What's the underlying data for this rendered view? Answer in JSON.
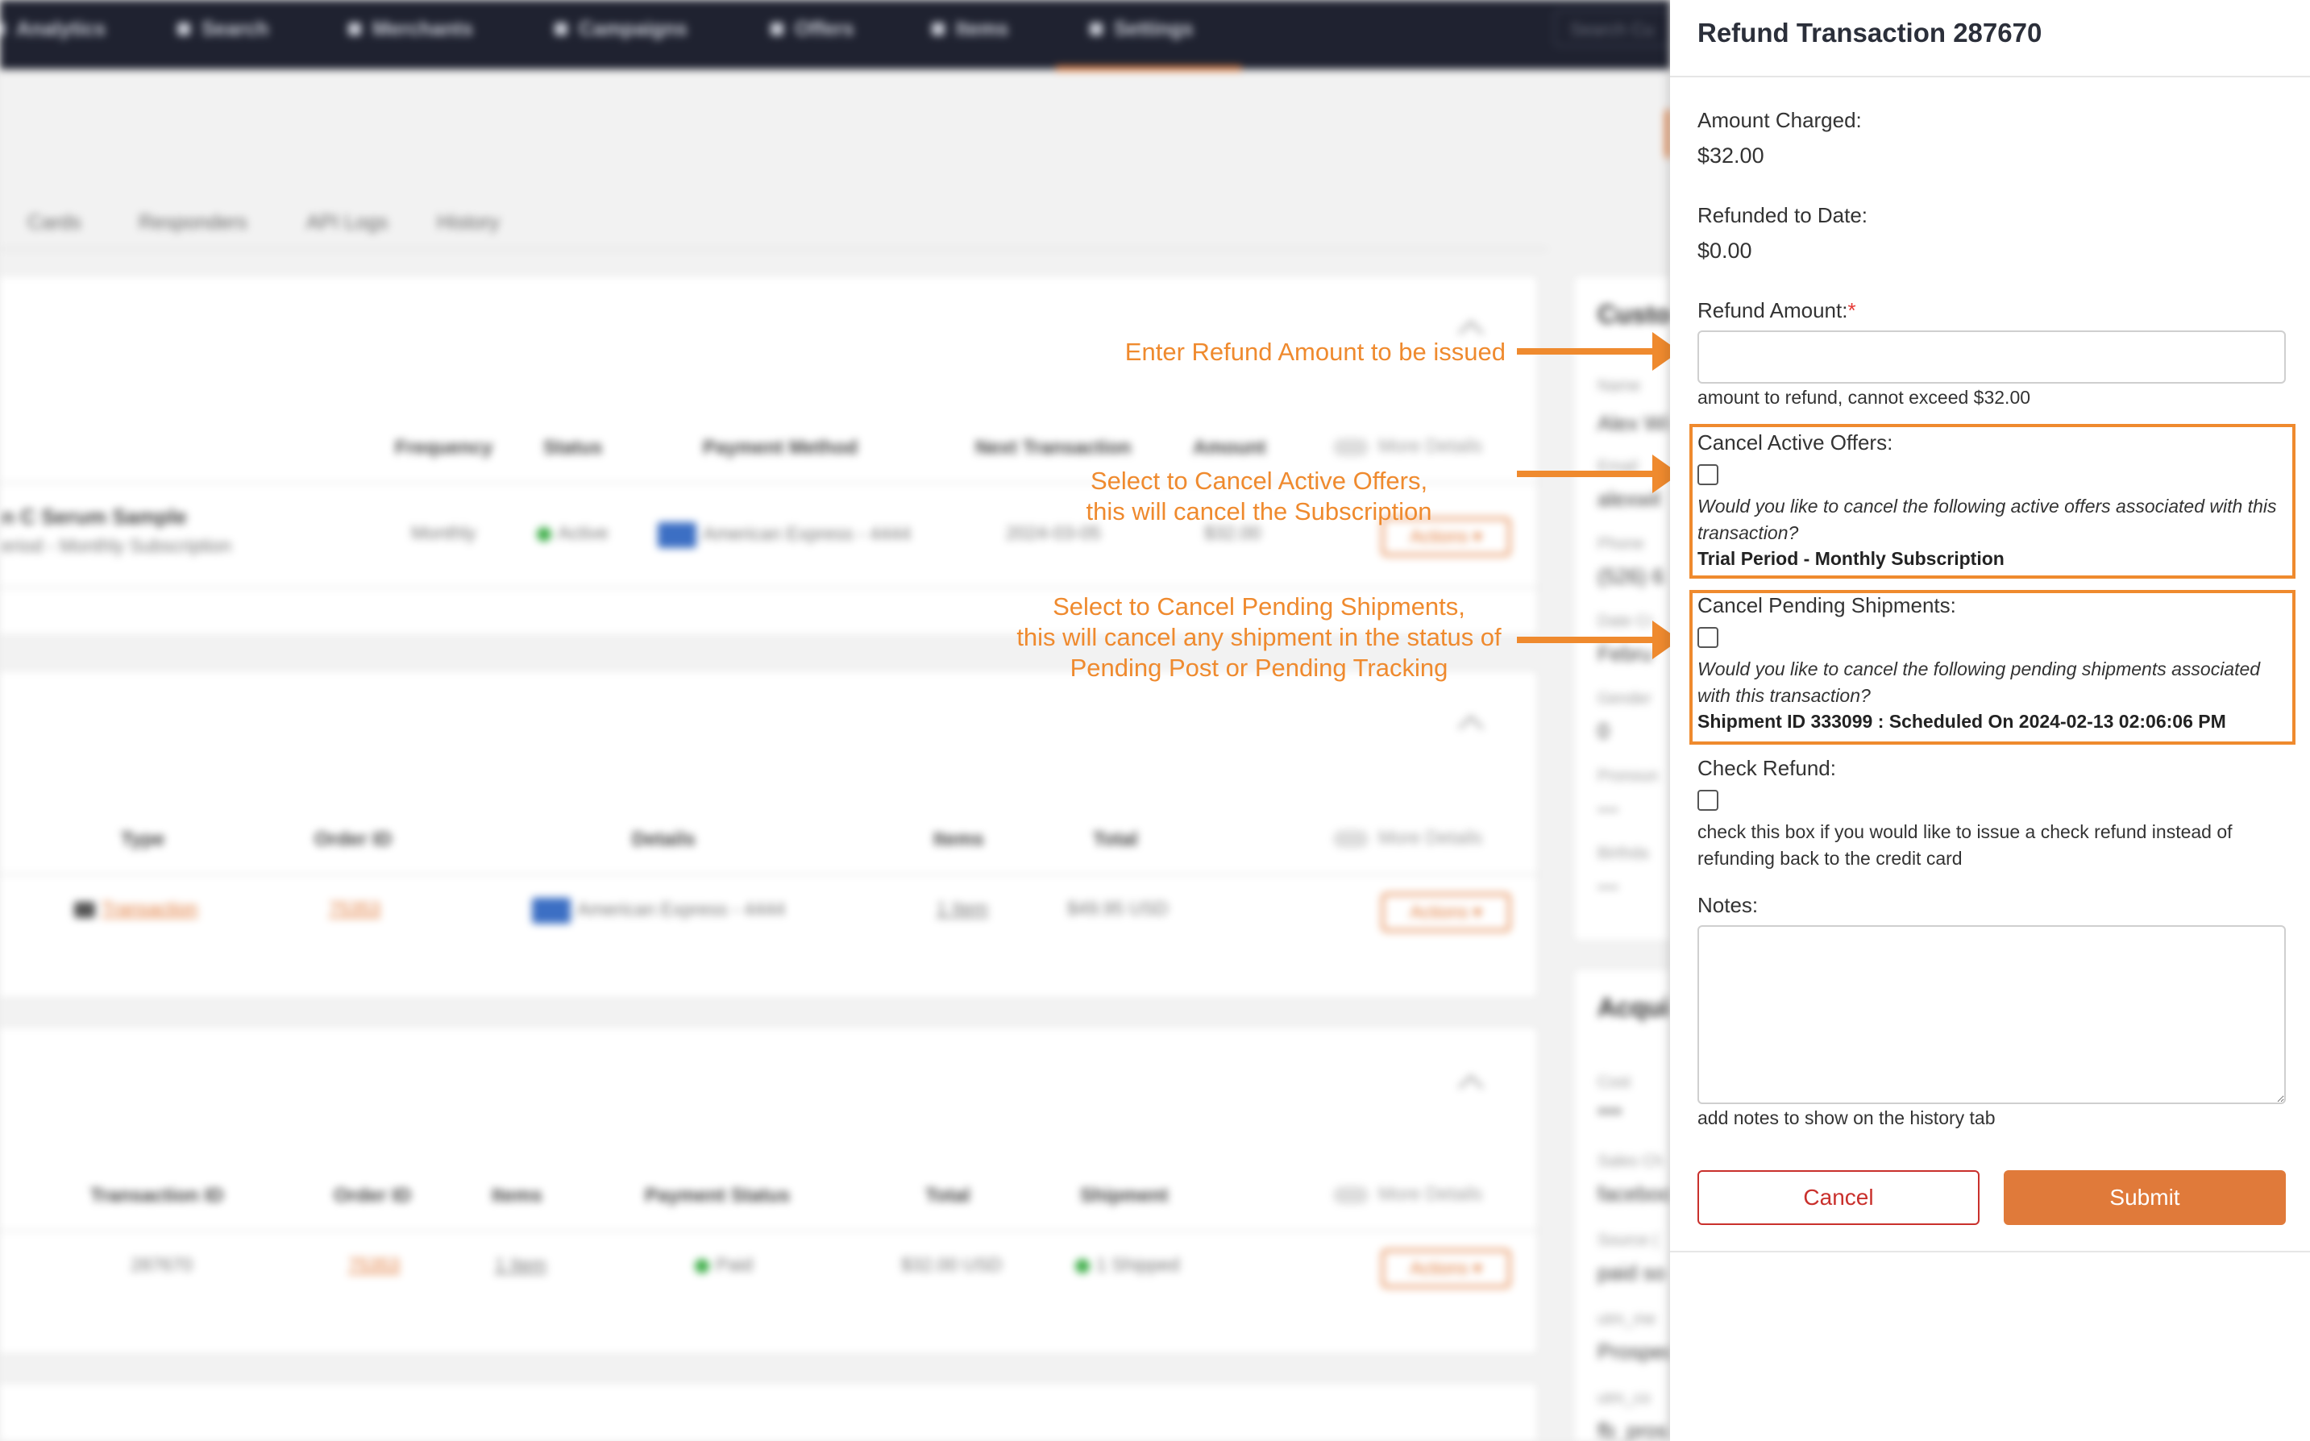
{
  "nav": {
    "items": [
      "Analytics",
      "Search",
      "Merchants",
      "Campaigns",
      "Offers",
      "Items",
      "Settings"
    ],
    "search_placeholder": "Search Cu"
  },
  "subtabs": [
    "Cards",
    "Responders",
    "API Logs",
    "History"
  ],
  "offers_table": {
    "headers": [
      "Frequency",
      "Status",
      "Payment Method",
      "Next Transaction",
      "Amount"
    ],
    "more_details": "More Details",
    "row": {
      "product": "n C Serum Sample",
      "subtitle": "eriod - Monthly Subscription",
      "frequency": "Monthly",
      "status": "Active",
      "payment": "American Express - 4444",
      "next": "2024-03-05",
      "amount": "$32.00",
      "actions": "Actions ▾"
    }
  },
  "orders_table": {
    "headers": [
      "Type",
      "Order ID",
      "Details",
      "Items",
      "Total"
    ],
    "more_details": "More Details",
    "row": {
      "type": "Transaction",
      "order_id": "75353",
      "details": "American Express - 4444",
      "items": "1 Item",
      "total": "$49.95 USD",
      "actions": "Actions ▾"
    }
  },
  "transactions_table": {
    "headers": [
      "Transaction ID",
      "Order ID",
      "Items",
      "Payment Status",
      "Total",
      "Shipment"
    ],
    "more_details": "More Details",
    "row": {
      "transaction_id": "287670",
      "order_id": "75353",
      "items": "1 Item",
      "payment_status": "Paid",
      "total": "$32.00 USD",
      "shipment": "1 Shipped",
      "actions": "Actions ▾"
    }
  },
  "side": {
    "customer_title": "Custo",
    "fields": [
      {
        "label": "Name",
        "value": "Alex Wil"
      },
      {
        "label": "Email",
        "value": "alexwil"
      },
      {
        "label": "Phone",
        "value": "(526) 6"
      },
      {
        "label": "Date Cr",
        "value": "Febru"
      },
      {
        "label": "Gender",
        "value": "0"
      },
      {
        "label": "Pronoun",
        "value": "---"
      },
      {
        "label": "Birthda",
        "value": "---"
      }
    ],
    "acq_title": "Acqui",
    "acq_fields": [
      {
        "label": "Cost",
        "value": "***"
      },
      {
        "label": "Sales Ch",
        "value": "faceboo"
      },
      {
        "label": "Source (",
        "value": "paid so"
      },
      {
        "label": "utm_me",
        "value": "Prospec"
      },
      {
        "label": "utm_co",
        "value": "fb_pros"
      }
    ]
  },
  "panel": {
    "title": "Refund Transaction 287670",
    "amount_charged_label": "Amount Charged:",
    "amount_charged": "$32.00",
    "refunded_label": "Refunded to Date:",
    "refunded": "$0.00",
    "refund_amount_label": "Refund Amount:",
    "required_mark": "*",
    "refund_amount_value": "",
    "refund_help": "amount to refund, cannot exceed $32.00",
    "cancel_offers_label": "Cancel Active Offers:",
    "cancel_offers_question": "Would you like to cancel the following active offers associated with this transaction?",
    "cancel_offers_item": "Trial Period - Monthly Subscription",
    "cancel_shipments_label": "Cancel Pending Shipments:",
    "cancel_shipments_question": "Would you like to cancel the following pending shipments associated with this transaction?",
    "cancel_shipments_item": "Shipment ID 333099 : Scheduled On 2024-02-13 02:06:06 PM",
    "check_refund_label": "Check Refund:",
    "check_refund_help": "check this box if you would like to issue a check refund instead of refunding back to the credit card",
    "notes_label": "Notes:",
    "notes_value": "",
    "notes_help": "add notes to show on the history tab",
    "cancel_button": "Cancel",
    "submit_button": "Submit"
  },
  "annotations": {
    "refund_amount": "Enter Refund Amount to be issued",
    "offers_line1": "Select to Cancel Active Offers,",
    "offers_line2": "this will cancel the Subscription",
    "ship_line1": "Select to Cancel Pending Shipments,",
    "ship_line2": "this will cancel any shipment in the status of",
    "ship_line3": "Pending Post or Pending Tracking"
  },
  "colors": {
    "accent": "#e07a3a",
    "annotation": "#ef8a2e",
    "nav_bg": "#1f2230",
    "danger": "#c9302c"
  }
}
